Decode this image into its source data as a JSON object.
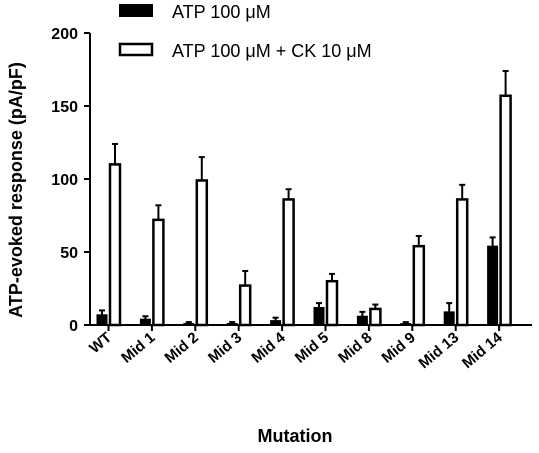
{
  "chart_data": {
    "type": "bar",
    "title": "",
    "xlabel": "Mutation",
    "ylabel": "ATP-evoked response (pA/pF)",
    "ylim": [
      0,
      200
    ],
    "yticks": [
      0,
      50,
      100,
      150,
      200
    ],
    "grid": false,
    "legend_position": "top",
    "categories": [
      "WT",
      "Mid 1",
      "Mid 2",
      "Mid 3",
      "Mid 4",
      "Mid 5",
      "Mid 8",
      "Mid 9",
      "Mid 13",
      "Mid 14"
    ],
    "series": [
      {
        "name": "ATP 100 μM",
        "fill": "#000000",
        "values": [
          7,
          4,
          1,
          1,
          3,
          12,
          6,
          1,
          9,
          54
        ],
        "errors": [
          3,
          2,
          1,
          1,
          2,
          3,
          3,
          1,
          6,
          6
        ]
      },
      {
        "name": "ATP 100 μM + CK 10 μM",
        "fill": "#ffffff",
        "values": [
          110,
          72,
          99,
          27,
          86,
          30,
          11,
          54,
          86,
          157
        ],
        "errors": [
          14,
          10,
          16,
          10,
          7,
          5,
          3,
          7,
          10,
          17
        ]
      }
    ]
  }
}
